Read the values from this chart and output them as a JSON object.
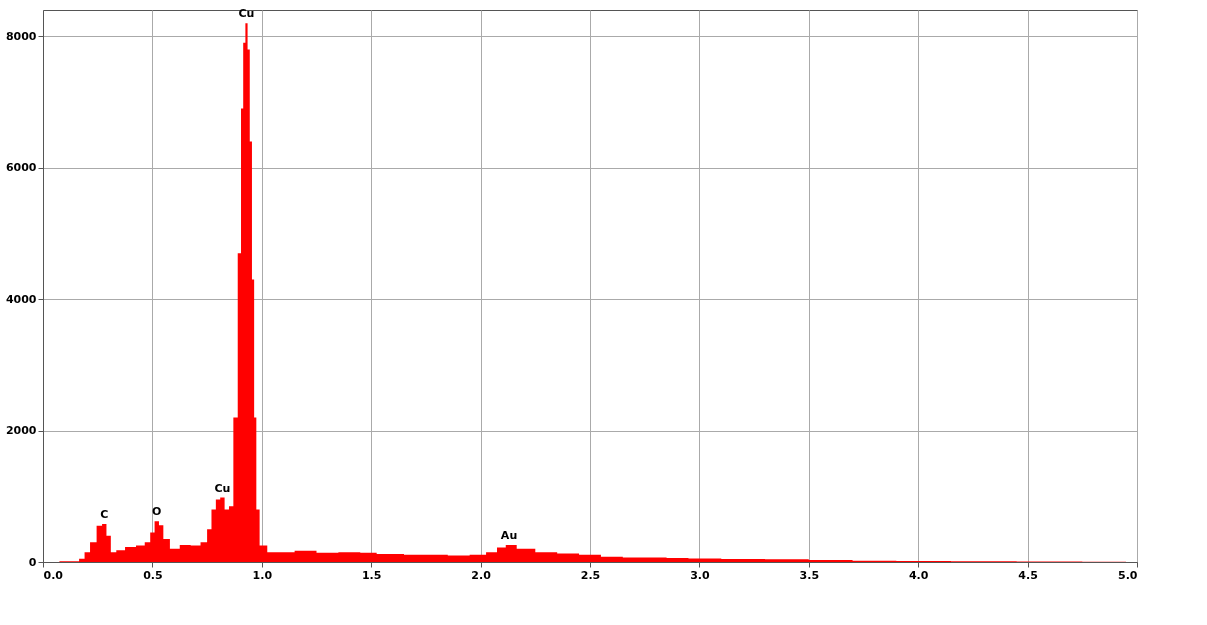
{
  "chart_data": {
    "type": "area",
    "x": [
      0.0,
      0.15,
      0.18,
      0.2,
      0.23,
      0.26,
      0.28,
      0.3,
      0.32,
      0.35,
      0.4,
      0.45,
      0.48,
      0.5,
      0.52,
      0.54,
      0.56,
      0.6,
      0.65,
      0.7,
      0.74,
      0.76,
      0.78,
      0.8,
      0.82,
      0.84,
      0.86,
      0.88,
      0.9,
      0.91,
      0.92,
      0.93,
      0.94,
      0.95,
      0.96,
      0.97,
      0.98,
      1.0,
      1.05,
      1.1,
      1.2,
      1.3,
      1.4,
      1.5,
      1.55,
      1.6,
      1.7,
      1.8,
      1.9,
      2.0,
      2.05,
      2.1,
      2.13,
      2.2,
      2.3,
      2.4,
      2.5,
      2.6,
      2.7,
      2.8,
      2.9,
      3.0,
      3.2,
      3.4,
      3.6,
      3.8,
      4.0,
      4.3,
      4.6,
      4.9,
      5.0
    ],
    "series": [
      {
        "color": "#ff0000",
        "values": [
          0,
          10,
          50,
          150,
          300,
          550,
          580,
          400,
          150,
          180,
          230,
          250,
          300,
          450,
          620,
          560,
          350,
          200,
          260,
          250,
          300,
          500,
          800,
          950,
          980,
          800,
          850,
          2200,
          4700,
          6900,
          7900,
          8200,
          7800,
          6400,
          4300,
          2200,
          800,
          250,
          150,
          150,
          170,
          140,
          150,
          140,
          120,
          120,
          110,
          110,
          100,
          110,
          150,
          220,
          260,
          200,
          150,
          130,
          110,
          80,
          70,
          70,
          60,
          55,
          45,
          40,
          30,
          20,
          15,
          10,
          8,
          5,
          0
        ]
      }
    ],
    "xlim": [
      0,
      5
    ],
    "xticks": [
      {
        "value": 0,
        "label": "0.0"
      },
      0.5,
      {
        "value": 1,
        "label": "1.0"
      },
      1.5,
      {
        "value": 2,
        "label": "2.0"
      },
      2.5,
      {
        "value": 3,
        "label": "3.0"
      },
      3.5,
      {
        "value": 4,
        "label": "4.0"
      },
      4.5,
      {
        "value": 5,
        "label": "5.0"
      }
    ],
    "ylim": [
      0,
      8400
    ],
    "yticks": [
      0,
      2000,
      4000,
      6000,
      8000
    ],
    "grid": true,
    "annotations": [
      {
        "text": "C",
        "x": 0.28,
        "y": 580
      },
      {
        "text": "O",
        "x": 0.52,
        "y": 620
      },
      {
        "text": "Cu",
        "x": 0.82,
        "y": 980
      },
      {
        "text": "Cu",
        "x": 0.93,
        "y": 8200
      },
      {
        "text": "Au",
        "x": 2.13,
        "y": 260
      }
    ]
  }
}
